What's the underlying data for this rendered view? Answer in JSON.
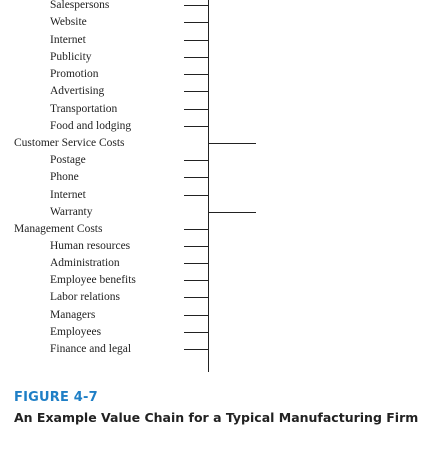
{
  "list": {
    "items": [
      {
        "text": "Salespersons",
        "kind": "sub"
      },
      {
        "text": "Website",
        "kind": "sub"
      },
      {
        "text": "Internet",
        "kind": "sub"
      },
      {
        "text": "Publicity",
        "kind": "sub"
      },
      {
        "text": "Promotion",
        "kind": "sub"
      },
      {
        "text": "Advertising",
        "kind": "sub"
      },
      {
        "text": "Transportation",
        "kind": "sub"
      },
      {
        "text": "Food and lodging",
        "kind": "sub"
      },
      {
        "text": "Customer Service Costs",
        "kind": "head"
      },
      {
        "text": "Postage",
        "kind": "sub"
      },
      {
        "text": "Phone",
        "kind": "sub"
      },
      {
        "text": "Internet",
        "kind": "sub"
      },
      {
        "text": "Warranty",
        "kind": "sub"
      },
      {
        "text": "Management Costs",
        "kind": "head"
      },
      {
        "text": "Human resources",
        "kind": "sub"
      },
      {
        "text": "Administration",
        "kind": "sub"
      },
      {
        "text": "Employee benefits",
        "kind": "sub"
      },
      {
        "text": "Labor relations",
        "kind": "sub"
      },
      {
        "text": "Managers",
        "kind": "sub"
      },
      {
        "text": "Employees",
        "kind": "sub"
      },
      {
        "text": "Finance and legal",
        "kind": "sub"
      }
    ]
  },
  "figure": {
    "label": "FIGURE 4-7",
    "caption": "An Example Value Chain for a Typical Manufacturing Firm"
  },
  "colors": {
    "accent": "#1f7fc6",
    "text": "#222222"
  }
}
